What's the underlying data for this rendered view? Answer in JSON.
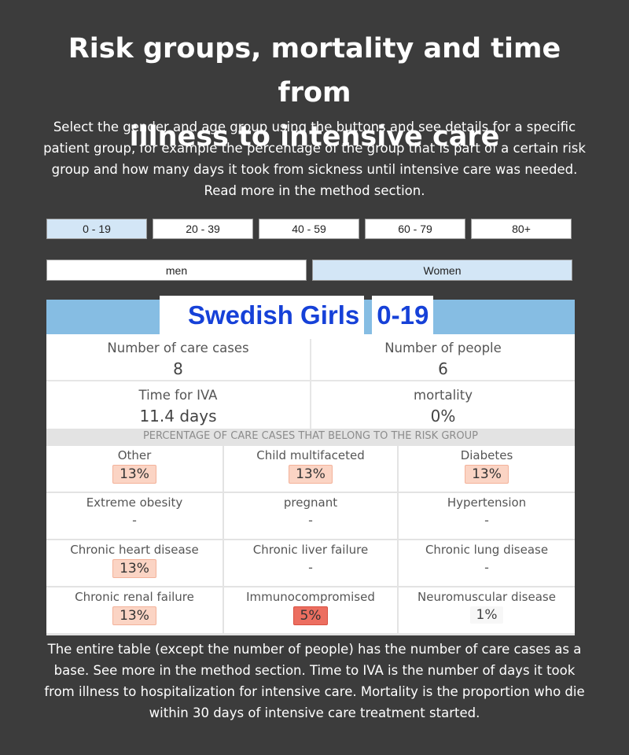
{
  "title_line1": "Risk groups, mortality and time from",
  "title_line2": "illness to intensive care",
  "intro": "Select the gender and age group using the buttons and see details for a specific patient group, for example the percentage of the group that is part of a certain risk group and how many days it took from sickness until intensive care was needed. Read more in the method section.",
  "age_buttons": [
    {
      "label": "0 - 19",
      "active": true
    },
    {
      "label": "20 - 39",
      "active": false
    },
    {
      "label": "40 - 59",
      "active": false
    },
    {
      "label": "60 - 79",
      "active": false
    },
    {
      "label": "80+",
      "active": false
    }
  ],
  "gender_buttons": [
    {
      "label": "men",
      "active": false
    },
    {
      "label": "Women",
      "active": true
    }
  ],
  "card": {
    "headline_group": "Swedish Girls",
    "headline_age": "0-19",
    "stats": {
      "care_cases_label": "Number of care cases",
      "care_cases_value": "8",
      "people_label": "Number of people",
      "people_value": "6",
      "iva_label": "Time for IVA",
      "iva_value": "11.4 days",
      "mortality_label": "mortality",
      "mortality_value": "0%"
    },
    "section_title": "PERCENTAGE OF CARE CASES THAT BELONG TO THE RISK GROUP",
    "risk_groups": [
      {
        "label": "Other",
        "value": "13%",
        "level": "med"
      },
      {
        "label": "Child multifaceted",
        "value": "13%",
        "level": "med"
      },
      {
        "label": "Diabetes",
        "value": "13%",
        "level": "med"
      },
      {
        "label": "Extreme obesity",
        "value": "-",
        "level": "none"
      },
      {
        "label": "pregnant",
        "value": "-",
        "level": "none"
      },
      {
        "label": "Hypertension",
        "value": "-",
        "level": "none"
      },
      {
        "label": "Chronic heart disease",
        "value": "13%",
        "level": "med"
      },
      {
        "label": "Chronic liver failure",
        "value": "-",
        "level": "none"
      },
      {
        "label": "Chronic lung disease",
        "value": "-",
        "level": "none"
      },
      {
        "label": "Chronic renal failure",
        "value": "13%",
        "level": "med"
      },
      {
        "label": "Immunocompromised",
        "value": "5%",
        "level": "high"
      },
      {
        "label": "Neuromuscular disease",
        "value": "1%",
        "level": "low"
      }
    ]
  },
  "footer": "The entire table (except the number of people) has the number of care cases as a base. See more in the method section. Time to IVA is the number of days it took from illness to hospitalization for intensive care. Mortality is the proportion who die within 30 days of intensive care treatment started.",
  "colors": {
    "background": "#3c3c3c",
    "active_button": "#d3e6f6",
    "header_band": "#86bde3",
    "headline_text": "#1641d8",
    "pill_medium": "#fbd4c4",
    "pill_high": "#ec6e60"
  }
}
